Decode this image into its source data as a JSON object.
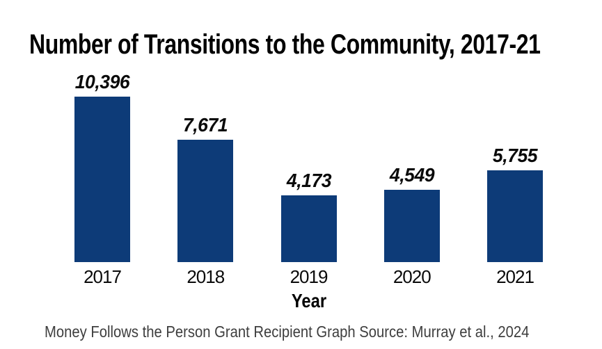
{
  "title": "Number of Transitions to the Community, 2017-21",
  "source_note": "Money Follows the Person Grant Recipient Graph Source: Murray et al., 2024",
  "colors": {
    "bar": "#0d3b78",
    "title_text": "#000000",
    "label_text": "#0a0a0a",
    "source_text": "#3e3e3e",
    "background": "#ffffff"
  },
  "chart_data": {
    "type": "bar",
    "title": "Number of Transitions to the Community, 2017-21",
    "categories": [
      "2017",
      "2018",
      "2019",
      "2020",
      "2021"
    ],
    "values": [
      10396,
      7671,
      4173,
      4549,
      5755
    ],
    "value_labels": [
      "10,396",
      "7,671",
      "4,173",
      "4,549",
      "5,755"
    ],
    "xlabel": "Year",
    "ylabel": "",
    "ylim": [
      0,
      10396
    ],
    "grid": false,
    "legend": false,
    "axis_lines": false,
    "bar_color": "#0d3b78",
    "data_label_style": "italic",
    "source": "Money Follows the Person Grant Recipient Graph Source: Murray et al., 2024"
  }
}
